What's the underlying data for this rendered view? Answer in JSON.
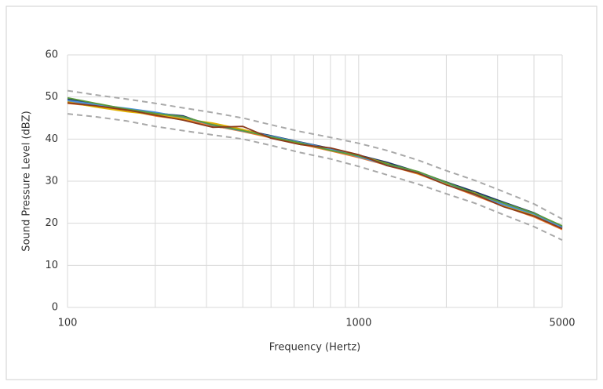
{
  "chart_data": {
    "type": "line",
    "x_label": "Frequency (Hertz)",
    "y_label": "Sound Pressure Level (dBZ)",
    "x": [
      100,
      125,
      160,
      200,
      250,
      315,
      400,
      500,
      630,
      800,
      1000,
      1250,
      1600,
      2000,
      2500,
      3150,
      4000,
      5000
    ],
    "xlim": [
      100,
      5000
    ],
    "xticks": [
      100,
      1000,
      5000
    ],
    "xminor": [
      200,
      300,
      400,
      500,
      600,
      700,
      800,
      900,
      2000,
      3000,
      4000
    ],
    "ylim": [
      0,
      60
    ],
    "yticks": [
      0,
      10,
      20,
      30,
      40,
      50,
      60
    ],
    "xscale": "log",
    "grid": true,
    "series": [
      {
        "color": "#a9a9a9",
        "dash": true,
        "values": [
          51.5,
          50.5,
          49.5,
          48.5,
          47.4,
          46.3,
          45,
          43.4,
          41.8,
          40.4,
          39,
          37.3,
          35,
          32.5,
          30.2,
          27.5,
          24.6,
          21
        ]
      },
      {
        "color": "#a9a9a9",
        "dash": true,
        "values": [
          46,
          45.3,
          44.3,
          43,
          42,
          41,
          40,
          38.5,
          36.8,
          35.3,
          33.5,
          31.5,
          29.3,
          27,
          24.8,
          22,
          19.2,
          16
        ]
      },
      {
        "color": "#1f3864",
        "values": [
          49.5,
          48.3,
          47,
          46.2,
          45.5,
          43,
          42.2,
          40.8,
          39.3,
          37.8,
          36.2,
          34.5,
          32.2,
          29.8,
          27.5,
          25,
          22.5,
          19.2
        ]
      },
      {
        "color": "#ed7d31",
        "values": [
          48.5,
          47.8,
          46.8,
          45.5,
          44.6,
          43.2,
          41.8,
          40.3,
          38.8,
          37.2,
          35.6,
          33.8,
          31.7,
          29.2,
          26.6,
          24,
          21.5,
          18.5
        ]
      },
      {
        "color": "#8c8c8c",
        "values": [
          49,
          48,
          47.2,
          46,
          45,
          43.6,
          42.1,
          40.6,
          39,
          37.4,
          35.9,
          34,
          32,
          29.4,
          27,
          24.6,
          22,
          18.9
        ]
      },
      {
        "color": "#e0b000",
        "values": [
          48.8,
          47.6,
          46.5,
          45.8,
          44.8,
          43.8,
          42.3,
          40.4,
          38.9,
          37.6,
          36.1,
          34.2,
          31.8,
          29.3,
          27.2,
          24.3,
          21.8,
          18.8
        ]
      },
      {
        "color": "#4a90d9",
        "values": [
          49.2,
          48.2,
          47.3,
          46.4,
          45.2,
          43.3,
          41.9,
          40.7,
          39.2,
          37.7,
          35.8,
          33.9,
          32.1,
          29.6,
          26.8,
          24.4,
          22.2,
          19
        ]
      },
      {
        "color": "#5a9a3a",
        "values": [
          49.8,
          48.5,
          47.1,
          46.1,
          45.3,
          43.4,
          42,
          40.5,
          39.1,
          37.3,
          36,
          34.1,
          32.3,
          29.7,
          27.1,
          24.8,
          22.4,
          19.4
        ]
      },
      {
        "color": "#8b3a1a",
        "values": [
          48.6,
          47.9,
          46.9,
          45.7,
          44.5,
          42.8,
          43,
          40.2,
          38.7,
          37.9,
          36.3,
          33.7,
          31.9,
          29.1,
          26.9,
          23.9,
          21.7,
          18.7
        ]
      }
    ]
  }
}
